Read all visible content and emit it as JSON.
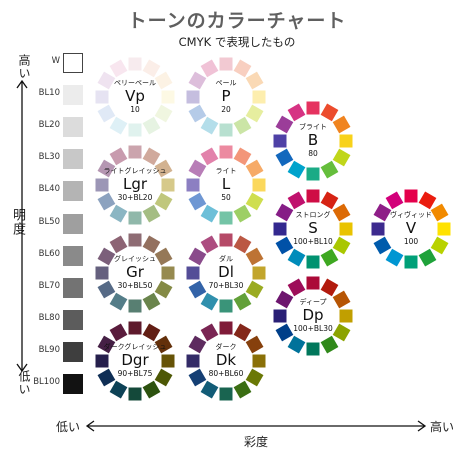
{
  "header": {
    "title": "トーンのカラーチャート",
    "subtitle": "CMYK で表現したもの"
  },
  "axes": {
    "brightness_high": "高い",
    "brightness_low": "低い",
    "brightness_label": "明度",
    "saturation_low": "低い",
    "saturation_high": "高い",
    "saturation_label": "彩度"
  },
  "gray_scale": [
    {
      "label": "W",
      "color": "#ffffff"
    },
    {
      "label": "BL10",
      "color": "#ececec"
    },
    {
      "label": "BL20",
      "color": "#dcdcdc"
    },
    {
      "label": "BL30",
      "color": "#c8c8c8"
    },
    {
      "label": "BL40",
      "color": "#b4b4b4"
    },
    {
      "label": "BL50",
      "color": "#9f9f9f"
    },
    {
      "label": "BL60",
      "color": "#8a8a8a"
    },
    {
      "label": "BL70",
      "color": "#737373"
    },
    {
      "label": "BL80",
      "color": "#5c5c5c"
    },
    {
      "label": "BL90",
      "color": "#3e3e3e"
    },
    {
      "label": "BL100",
      "color": "#121212"
    }
  ],
  "tones": [
    {
      "id": "vp",
      "name": "ペリーペール",
      "code": "Vp",
      "mix": "10",
      "colors": [
        "#f7ebee",
        "#fbeee8",
        "#fcf2e4",
        "#fdf9e4",
        "#f0f6e0",
        "#e6f3e2",
        "#e0f2ee",
        "#def0f6",
        "#e0e9f6",
        "#e6e3f2",
        "#efe3f0",
        "#f8e6ef"
      ]
    },
    {
      "id": "p",
      "name": "ペール",
      "code": "P",
      "mix": "20",
      "colors": [
        "#f2c9d2",
        "#f8cfc0",
        "#fad9b5",
        "#fdeeae",
        "#e6ee9f",
        "#cbe5a6",
        "#b8e0d0",
        "#b4deea",
        "#b5cbe8",
        "#c5bedf",
        "#ddbedb",
        "#f0c2d6"
      ]
    },
    {
      "id": "lgr",
      "name": "ライトグレイッシュ",
      "code": "Lgr",
      "mix": "30+BL20",
      "colors": [
        "#cba4ad",
        "#d0a99c",
        "#d2b290",
        "#d6c98a",
        "#c0c77c",
        "#a4bd83",
        "#90b8aa",
        "#8bb6c3",
        "#8ca2bf",
        "#9c96b6",
        "#b596b2",
        "#c89bae"
      ]
    },
    {
      "id": "l",
      "name": "ライト",
      "code": "L",
      "mix": "50",
      "colors": [
        "#ec8aa0",
        "#f39679",
        "#f6aa67",
        "#fbd85c",
        "#cfde4e",
        "#9dcf65",
        "#74c4a6",
        "#6dbfd8",
        "#6f97d3",
        "#8c7fc2",
        "#b87db7",
        "#e282ab"
      ]
    },
    {
      "id": "gr",
      "name": "グレイッシュ",
      "code": "Gr",
      "mix": "30+BL50",
      "colors": [
        "#8e6c74",
        "#93705f",
        "#957857",
        "#968a50",
        "#848a45",
        "#6a844c",
        "#587f72",
        "#547d88",
        "#566a86",
        "#65607e",
        "#7b5f7a",
        "#8d6474"
      ]
    },
    {
      "id": "dl",
      "name": "ダル",
      "code": "Dl",
      "mix": "70+BL30",
      "colors": [
        "#b54a67",
        "#bb5844",
        "#bd7334",
        "#c2a52c",
        "#9aab22",
        "#62a038",
        "#3a9479",
        "#3090ad",
        "#3363a8",
        "#544d97",
        "#8a4b8b",
        "#ad4d80"
      ]
    },
    {
      "id": "dgr",
      "name": "ダークグレイッシュ",
      "code": "Dgr",
      "mix": "90+BL75",
      "colors": [
        "#5e1a2c",
        "#621e14",
        "#63300b",
        "#665306",
        "#4d5805",
        "#2d520f",
        "#14493a",
        "#0d4256",
        "#0f2e55",
        "#251f4c",
        "#452045",
        "#5a1c3c"
      ]
    },
    {
      "id": "dk",
      "name": "ダーク",
      "code": "Dk",
      "mix": "80+BL60",
      "colors": [
        "#7f1b38",
        "#84271a",
        "#86400d",
        "#8a7007",
        "#6a7806",
        "#3b6e13",
        "#196450",
        "#125c77",
        "#153f74",
        "#332b67",
        "#5e2b5f",
        "#7a2553"
      ]
    },
    {
      "id": "b",
      "name": "ブライト",
      "code": "B",
      "mix": "80",
      "colors": [
        "#e5325f",
        "#ec4c2d",
        "#f08420",
        "#f8d21a",
        "#c0d61a",
        "#65be3c",
        "#1bab86",
        "#00a3cc",
        "#1368bd",
        "#4e41a6",
        "#9b3d99",
        "#d63383"
      ]
    },
    {
      "id": "s",
      "name": "ストロング",
      "code": "S",
      "mix": "100+BL10",
      "colors": [
        "#cf0d45",
        "#d62314",
        "#dc6a05",
        "#e9c300",
        "#a9c700",
        "#3ea821",
        "#009270",
        "#008cba",
        "#0051a7",
        "#33288f",
        "#861d86",
        "#c0116d"
      ]
    },
    {
      "id": "dp",
      "name": "ディープ",
      "code": "Dp",
      "mix": "100+BL30",
      "colors": [
        "#ab0a38",
        "#b21b0e",
        "#b65504",
        "#c19f00",
        "#8ba300",
        "#30891a",
        "#00775b",
        "#00729a",
        "#003f89",
        "#291f75",
        "#6d166e",
        "#9d0d59"
      ]
    },
    {
      "id": "v",
      "name": "ヴィヴィッド",
      "code": "V",
      "mix": "100",
      "colors": [
        "#e4004c",
        "#ea1c0f",
        "#f18a00",
        "#ffe200",
        "#b8d200",
        "#1fa23a",
        "#00a078",
        "#0096d2",
        "#005bac",
        "#3d2a8e",
        "#8f1e88",
        "#d2007a"
      ]
    }
  ]
}
